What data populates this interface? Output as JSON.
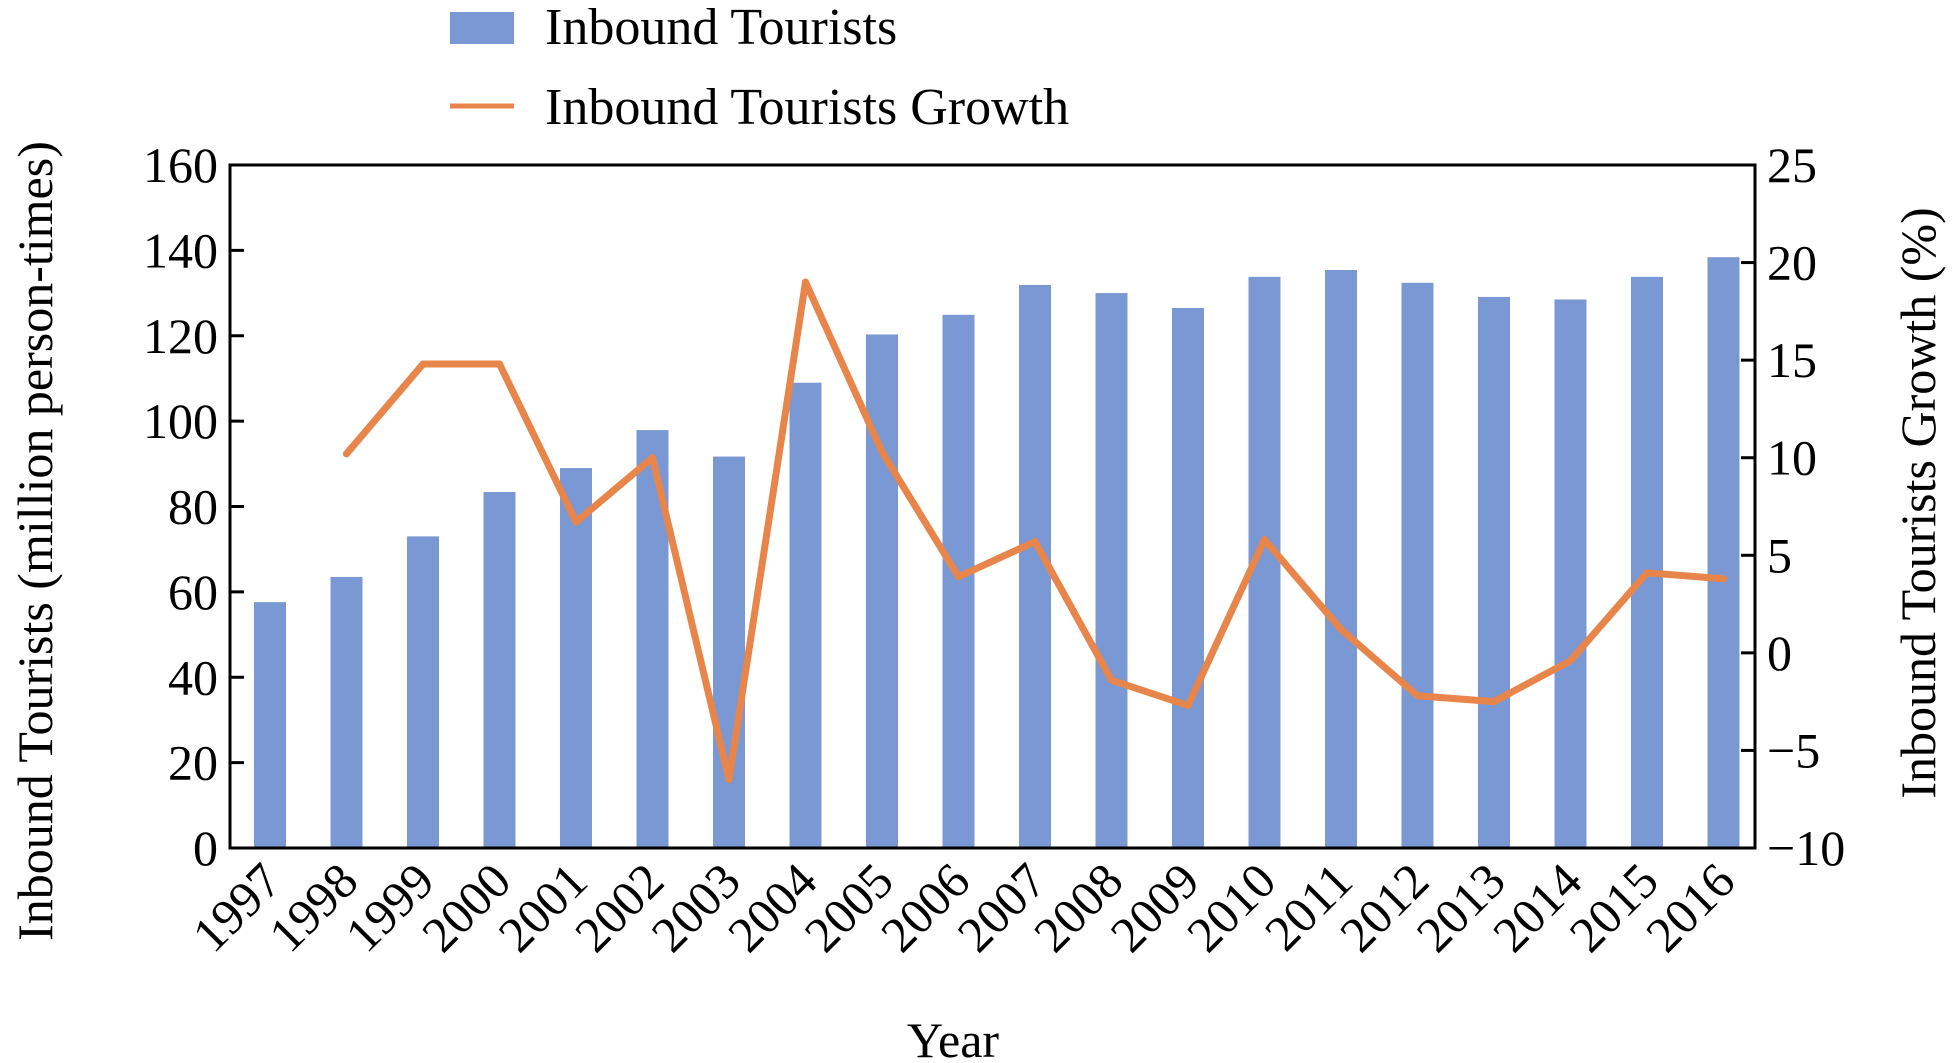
{
  "chart_data": {
    "type": "bar",
    "categories": [
      "1997",
      "1998",
      "1999",
      "2000",
      "2001",
      "2002",
      "2003",
      "2004",
      "2005",
      "2006",
      "2007",
      "2008",
      "2009",
      "2010",
      "2011",
      "2012",
      "2013",
      "2014",
      "2015",
      "2016"
    ],
    "series": [
      {
        "name": "Inbound Tourists",
        "type": "bar",
        "axis": "left",
        "color": "#7a98d4",
        "values": [
          57.6,
          63.5,
          73.0,
          83.4,
          89.0,
          97.9,
          91.7,
          109.0,
          120.3,
          124.9,
          131.9,
          130.0,
          126.5,
          133.8,
          135.4,
          132.4,
          129.1,
          128.5,
          133.8,
          138.4
        ]
      },
      {
        "name": "Inbound Tourists Growth",
        "type": "line",
        "axis": "right",
        "color": "#e8854a",
        "values": [
          null,
          10.2,
          14.8,
          14.8,
          6.7,
          10.0,
          -6.5,
          19.0,
          10.3,
          3.9,
          5.7,
          -1.4,
          -2.7,
          5.8,
          1.2,
          -2.2,
          -2.5,
          -0.4,
          4.1,
          3.8
        ]
      }
    ],
    "xlabel": "Year",
    "ylabel": "Inbound Tourists (million person-times)",
    "y2label": "Inbound Tourists Growth (%)",
    "ylim": [
      0,
      160
    ],
    "y2lim": [
      -10,
      25
    ],
    "yticks": [
      "0",
      "20",
      "40",
      "60",
      "80",
      "100",
      "120",
      "140",
      "160"
    ],
    "y2ticks": [
      "−10",
      "−5",
      "0",
      "5",
      "10",
      "15",
      "20",
      "25"
    ],
    "legend": "top-left, outside plot",
    "grid": false
  }
}
